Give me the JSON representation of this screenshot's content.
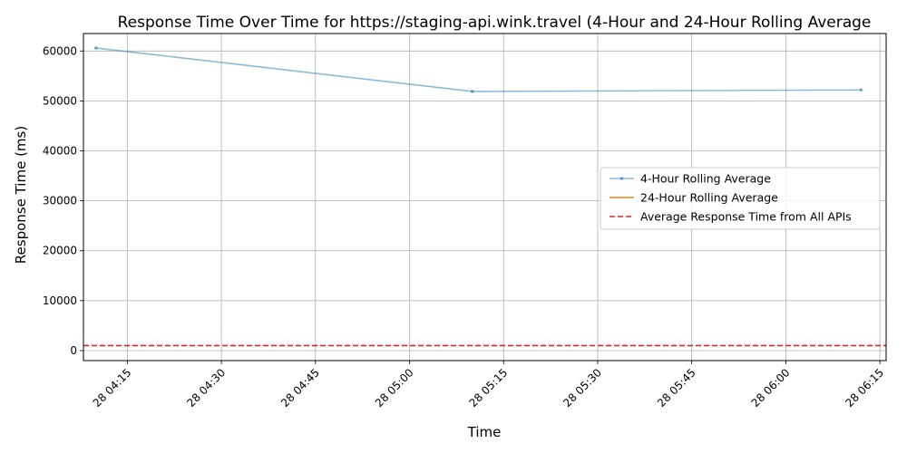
{
  "chart_data": {
    "type": "line",
    "title": "Response Time Over Time for https://staging-api.wink.travel (4-Hour and 24-Hour Rolling Average",
    "xlabel": "Time",
    "ylabel": "Response Time (ms)",
    "x_ticks": [
      "28 04:15",
      "28 04:30",
      "28 04:45",
      "28 05:00",
      "28 05:15",
      "28 05:30",
      "28 05:45",
      "28 06:00",
      "28 06:15"
    ],
    "y_ticks": [
      0,
      10000,
      20000,
      30000,
      40000,
      50000,
      60000
    ],
    "xlim": [
      "28 04:08",
      "28 06:16"
    ],
    "ylim": [
      -2000,
      63500
    ],
    "grid": true,
    "legend_position": "center-right",
    "series": [
      {
        "name": "4-Hour Rolling Average",
        "color": "#1f77b4",
        "style": "line-with-markers",
        "x": [
          "28 04:10",
          "28 05:10",
          "28 06:12"
        ],
        "y": [
          60600,
          51900,
          52200
        ]
      },
      {
        "name": "24-Hour Rolling Average",
        "color": "#ff7f0e",
        "style": "line",
        "x": [],
        "y": []
      }
    ],
    "reference_lines": [
      {
        "name": "Average Response Time from All APIs",
        "color": "#d62728",
        "style": "dashed",
        "y": 1000
      }
    ]
  }
}
